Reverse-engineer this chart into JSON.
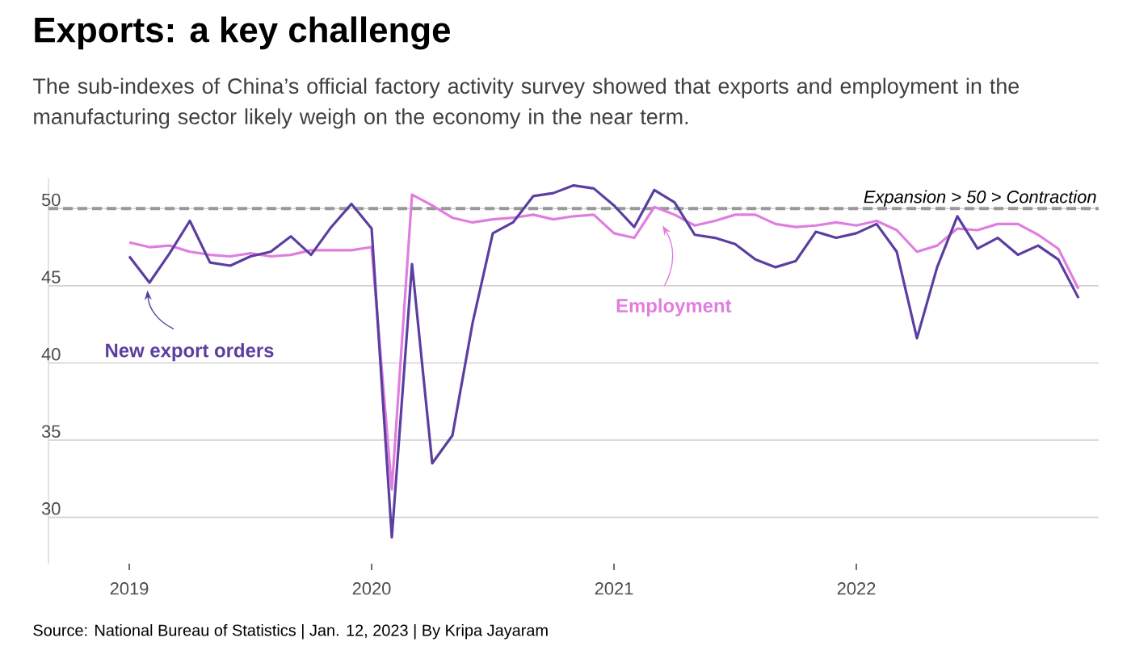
{
  "chart_data": {
    "type": "line",
    "title": "Exports: a key challenge",
    "subtitle": "The sub-indexes of China’s official factory activity survey showed that exports and employment in the manufacturing sector likely weigh on the economy in the near term.",
    "x": [
      "2019-01",
      "2019-02",
      "2019-03",
      "2019-04",
      "2019-05",
      "2019-06",
      "2019-07",
      "2019-08",
      "2019-09",
      "2019-10",
      "2019-11",
      "2019-12",
      "2020-01",
      "2020-02",
      "2020-03",
      "2020-04",
      "2020-05",
      "2020-06",
      "2020-07",
      "2020-08",
      "2020-09",
      "2020-10",
      "2020-11",
      "2020-12",
      "2021-01",
      "2021-02",
      "2021-03",
      "2021-04",
      "2021-05",
      "2021-06",
      "2021-07",
      "2021-08",
      "2021-09",
      "2021-10",
      "2021-11",
      "2021-12",
      "2022-01",
      "2022-02",
      "2022-03",
      "2022-04",
      "2022-05",
      "2022-06",
      "2022-07",
      "2022-08",
      "2022-09",
      "2022-10",
      "2022-11",
      "2022-12"
    ],
    "series": [
      {
        "name": "Employment",
        "color": "#e07ee0",
        "values": [
          47.8,
          47.5,
          47.6,
          47.2,
          47.0,
          46.9,
          47.1,
          46.9,
          47.0,
          47.3,
          47.3,
          47.3,
          47.5,
          31.8,
          50.9,
          50.2,
          49.4,
          49.1,
          49.3,
          49.4,
          49.6,
          49.3,
          49.5,
          49.6,
          48.4,
          48.1,
          50.1,
          49.6,
          48.9,
          49.2,
          49.6,
          49.6,
          49.0,
          48.8,
          48.9,
          49.1,
          48.9,
          49.2,
          48.6,
          47.2,
          47.6,
          48.7,
          48.6,
          49.0,
          49.0,
          48.3,
          47.4,
          44.8
        ]
      },
      {
        "name": "New export orders",
        "color": "#5b3fa0",
        "values": [
          46.9,
          45.2,
          47.1,
          49.2,
          46.5,
          46.3,
          46.9,
          47.2,
          48.2,
          47.0,
          48.8,
          50.3,
          48.7,
          28.7,
          46.4,
          33.5,
          35.3,
          42.6,
          48.4,
          49.1,
          50.8,
          51.0,
          51.5,
          51.3,
          50.2,
          48.8,
          51.2,
          50.4,
          48.3,
          48.1,
          47.7,
          46.7,
          46.2,
          46.6,
          48.5,
          48.1,
          48.4,
          49.0,
          47.2,
          41.6,
          46.2,
          49.5,
          47.4,
          48.1,
          47.0,
          47.6,
          46.7,
          44.2
        ]
      }
    ],
    "xlim": [
      "2018-09",
      "2023-01"
    ],
    "xticks": [
      {
        "value": "2019-01",
        "label": "2019"
      },
      {
        "value": "2020-01",
        "label": "2020"
      },
      {
        "value": "2021-01",
        "label": "2021"
      },
      {
        "value": "2022-01",
        "label": "2022"
      }
    ],
    "ylim": [
      27,
      52
    ],
    "yticks": [
      30,
      35,
      40,
      45,
      50
    ],
    "grid": "y",
    "marker": "none",
    "line_style": "solid",
    "ref_lines": [
      {
        "axis": "y",
        "value": 50,
        "label": "Expansion > 50 > Contraction",
        "color": "#999999",
        "line_style": "dashed"
      }
    ],
    "annotations": [
      "Source: National Bureau of Statistics | Jan. 12, 2023 | By Kripa Jayaram"
    ]
  }
}
